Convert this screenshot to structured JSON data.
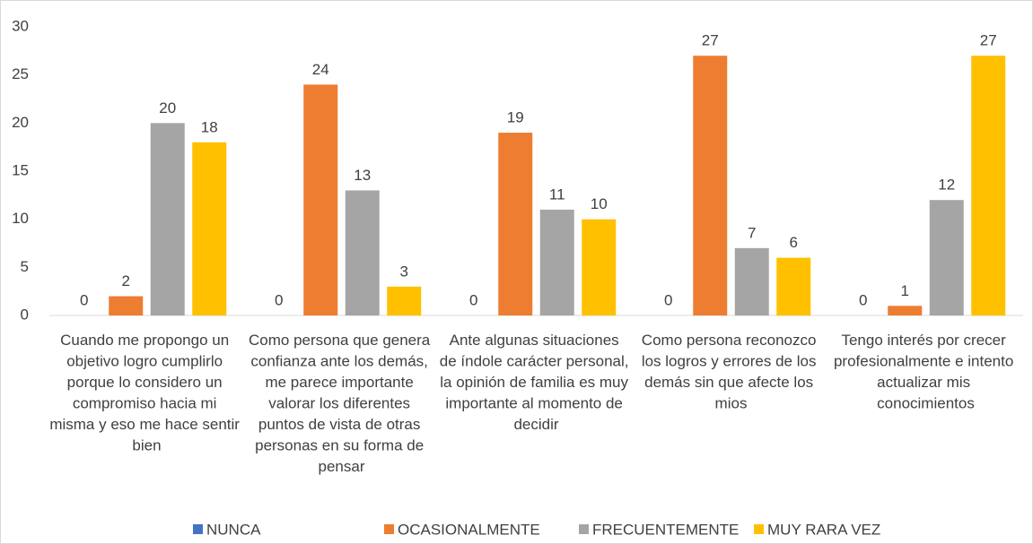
{
  "chart_data": {
    "type": "bar",
    "categories": [
      "Cuando me propongo un objetivo logro cumplirlo porque lo considero un compromiso hacia mi misma y eso me hace sentir bien",
      "Como persona que genera confianza ante los demás, me parece importante valorar los diferentes puntos de vista de otras personas en su forma de pensar",
      "Ante algunas situaciones de índole carácter personal, la opinión de familia es muy importante al momento de decidir",
      "Como persona reconozco los logros y errores de los demás sin que afecte los mios",
      "Tengo interés por crecer profesionalmente e intento actualizar mis conocimientos"
    ],
    "series": [
      {
        "name": "NUNCA",
        "color": "#4472c4",
        "values": [
          0,
          0,
          0,
          0,
          0
        ]
      },
      {
        "name": "OCASIONALMENTE",
        "color": "#ed7d31",
        "values": [
          2,
          24,
          19,
          27,
          1
        ]
      },
      {
        "name": "FRECUENTEMENTE",
        "color": "#a5a5a5",
        "values": [
          20,
          13,
          11,
          7,
          12
        ]
      },
      {
        "name": "MUY RARA VEZ",
        "color": "#ffc000",
        "values": [
          18,
          3,
          10,
          6,
          27
        ]
      }
    ],
    "ylim": [
      0,
      30
    ],
    "yticks": [
      0,
      5,
      10,
      15,
      20,
      25,
      30
    ],
    "grid": false,
    "legend": "bottom"
  }
}
